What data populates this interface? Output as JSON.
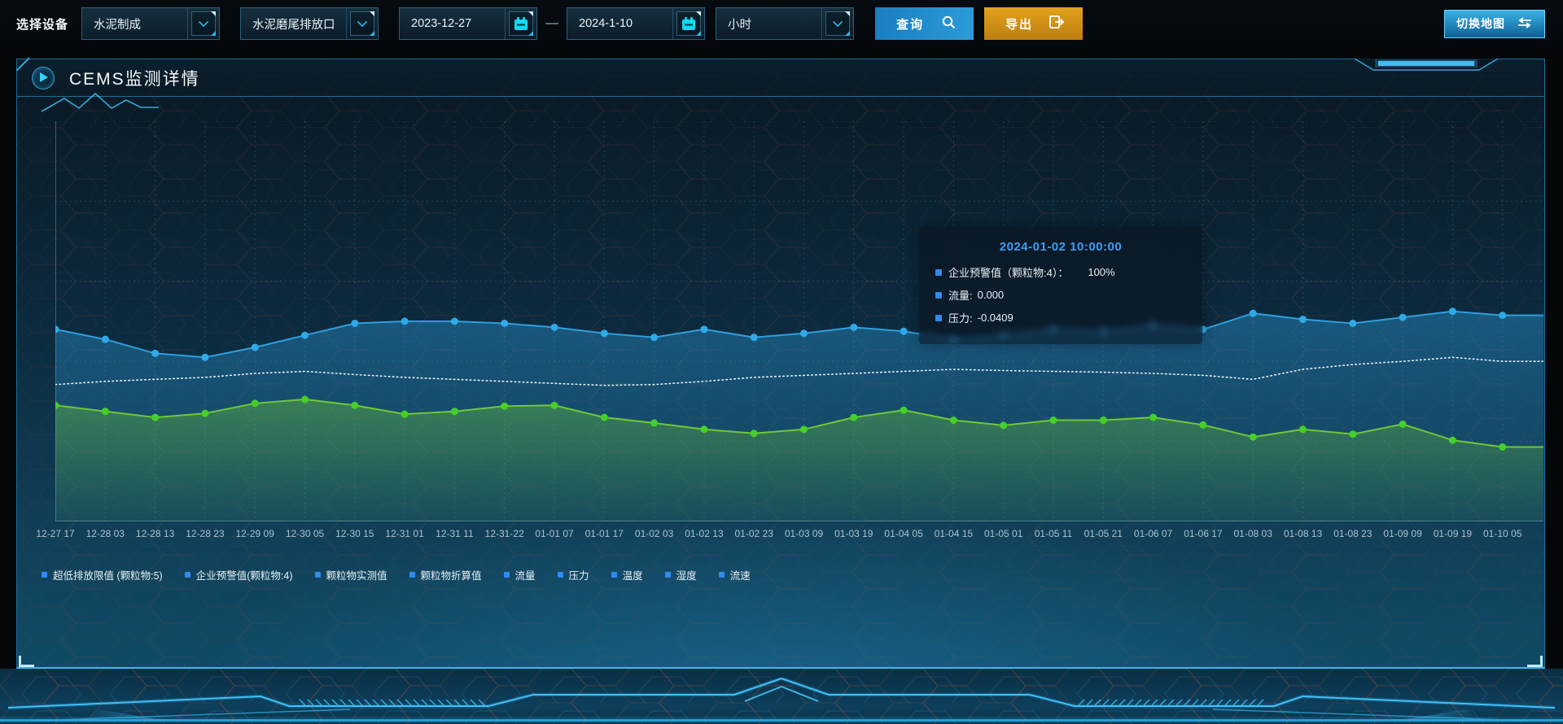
{
  "toolbar": {
    "device_label": "选择设备",
    "selects": {
      "line": "水泥制成",
      "outlet": "水泥磨尾排放口",
      "interval": "小时"
    },
    "dates": {
      "start": "2023-12-27",
      "separator": "—",
      "end": "2024-1-10"
    },
    "buttons": {
      "query": "查询",
      "export": "导出",
      "switch_map": "切换地图"
    }
  },
  "panel": {
    "title": "CEMS监测详情"
  },
  "tooltip": {
    "title": "2024-01-02 10:00:00",
    "marker_color": "#2D8CF0",
    "items": [
      {
        "label": "企业预警值（颗粒物:4）：",
        "value": "100%",
        "wide_gap": true
      },
      {
        "label": "流量:",
        "value": "0.000"
      },
      {
        "label": "压力:",
        "value": "-0.0409"
      }
    ]
  },
  "legend": {
    "marker_color": "#2D8CF0",
    "items": [
      "超低排放限值 (颗粒物:5)",
      "企业预警值(颗粒物:4)",
      "颗粒物实测值",
      "颗粒物折算值",
      "流量",
      "压力",
      "温度",
      "湿度",
      "流速"
    ]
  },
  "chart_data": {
    "type": "line",
    "title": "CEMS监测详情",
    "categories": [
      "12-27 17",
      "12-28 03",
      "12-28 13",
      "12-28 23",
      "12-29 09",
      "12-30 05",
      "12-30 15",
      "12-31 01",
      "12-31 11",
      "12-31-22",
      "01-01 07",
      "01-01 17",
      "01-02 03",
      "01-02 13",
      "01-02 23",
      "01-03 09",
      "01-03 19",
      "01-04 05",
      "01-04 15",
      "01-05 01",
      "01-05 11",
      "01-05 21",
      "01-06 07",
      "01-06 17",
      "01-08 03",
      "01-08 13",
      "01-08 23",
      "01-09 09",
      "01-09 19",
      "01-10 05"
    ],
    "ylim": [
      0,
      100
    ],
    "y_axis_labels_visible": false,
    "grid": "dashed",
    "legend_position": "bottom",
    "series": [
      {
        "name": "企业预警值(颗粒物:4)",
        "color": "#E6F2F7",
        "line_style": "dotted",
        "show_points": false,
        "area": false,
        "values": [
          34.2,
          35,
          35.5,
          36,
          37,
          37.5,
          36.7,
          36,
          35.5,
          35,
          34.5,
          34,
          34.2,
          35,
          36,
          36.5,
          37,
          37.5,
          38,
          37.7,
          37.5,
          37.3,
          37,
          36.5,
          35.5,
          38,
          39.2,
          40,
          41,
          40
        ]
      },
      {
        "name": "流量",
        "color": "#2E9FE0",
        "point_color": "#2FAAE8",
        "line_style": "solid",
        "show_points": true,
        "area": true,
        "values": [
          48,
          45.5,
          42,
          41,
          43.5,
          46.5,
          49.5,
          50,
          50,
          49.5,
          48.5,
          47,
          46,
          48,
          46,
          47,
          48.5,
          47.5,
          45.5,
          46.5,
          48,
          47.5,
          49,
          48,
          52,
          50.5,
          49.5,
          51,
          52.5,
          51.5
        ]
      },
      {
        "name": "压力",
        "color": "#6FC836",
        "point_color": "#45D028",
        "line_style": "solid",
        "show_points": true,
        "area": true,
        "values": [
          29,
          27.5,
          26,
          27,
          29.5,
          30.5,
          29,
          26.8,
          27.5,
          28.8,
          29,
          26,
          24.6,
          23,
          22,
          23,
          26,
          27.8,
          25.3,
          24,
          25.3,
          25.3,
          26,
          24.1,
          21.1,
          23,
          21.8,
          24.3,
          20.3,
          18.6
        ]
      }
    ]
  }
}
